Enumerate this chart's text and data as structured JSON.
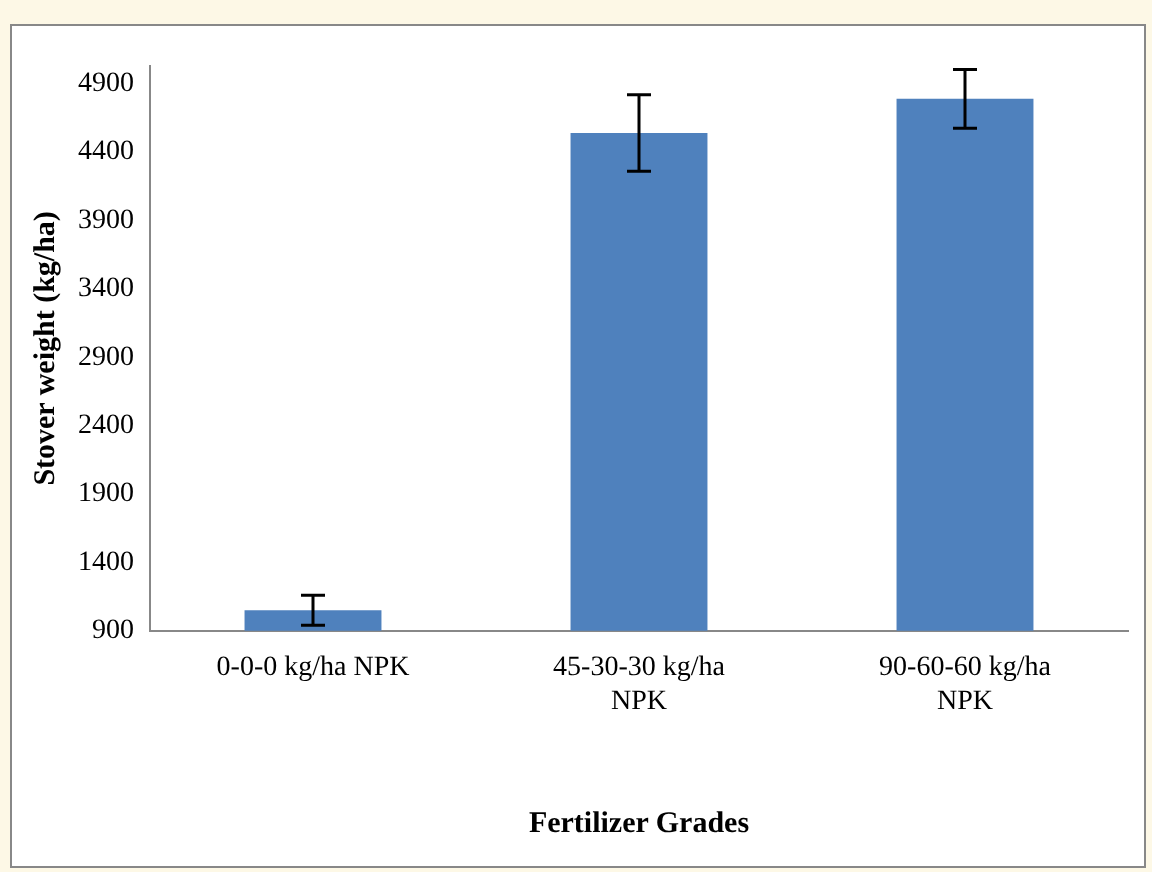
{
  "chart_data": {
    "type": "bar",
    "xlabel": "Fertilizer Grades",
    "ylabel": "Stover weight (kg/ha)",
    "categories": [
      "0-0-0 kg/ha NPK",
      "45-30-30 kg/ha NPK",
      "90-60-60 kg/ha NPK"
    ],
    "values": [
      1050,
      4540,
      4790
    ],
    "errors": [
      110,
      280,
      215
    ],
    "color": "#4f81bd",
    "ylim": [
      900,
      5030
    ],
    "yticks": [
      900,
      1400,
      1900,
      2400,
      2900,
      3400,
      3900,
      4400,
      4900
    ],
    "grid": false,
    "legend": false
  }
}
